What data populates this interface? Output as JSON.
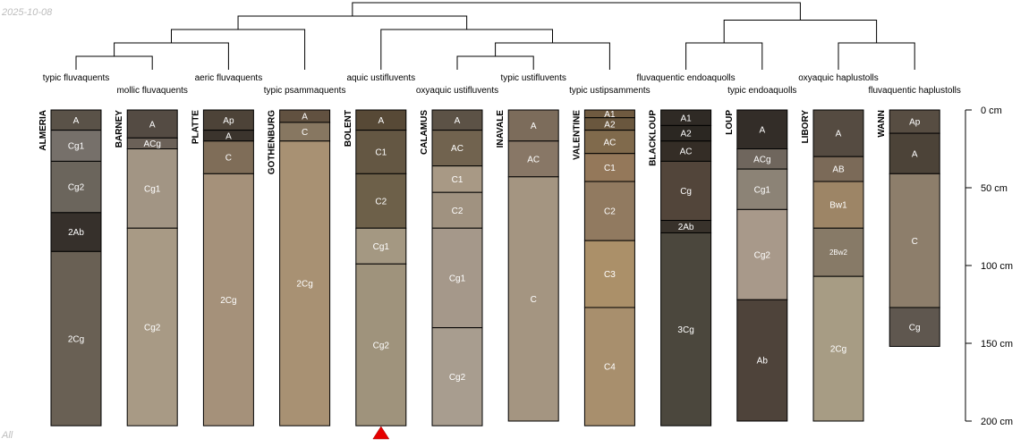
{
  "header": {
    "date": "2025-10-08",
    "footer": "All"
  },
  "chart_data": {
    "type": "soil-profile-sketch",
    "depth_axis": {
      "unit": "cm",
      "ticks": [
        0,
        50,
        100,
        150,
        200
      ],
      "tick_labels": [
        "0 cm",
        "50 cm",
        "100 cm",
        "150 cm",
        "200 cm"
      ],
      "range": [
        0,
        200
      ]
    },
    "marker": {
      "profile": "BOLENT",
      "symbol": "triangle"
    },
    "profiles": [
      {
        "name": "ALMERIA",
        "taxon": "typic fluvaquents",
        "horizons": [
          {
            "name": "A",
            "top": 0,
            "bottom": 13,
            "color": "#5a5248"
          },
          {
            "name": "Cg1",
            "top": 13,
            "bottom": 33,
            "color": "#76706a"
          },
          {
            "name": "Cg2",
            "top": 33,
            "bottom": 66,
            "color": "#6b655c"
          },
          {
            "name": "2Ab",
            "top": 66,
            "bottom": 91,
            "color": "#36302b"
          },
          {
            "name": "2Cg",
            "top": 91,
            "bottom": 203,
            "color": "#696054"
          }
        ]
      },
      {
        "name": "BARNEY",
        "taxon": "mollic fluvaquents",
        "horizons": [
          {
            "name": "A",
            "top": 0,
            "bottom": 18,
            "color": "#544b43"
          },
          {
            "name": "ACg",
            "top": 18,
            "bottom": 25,
            "color": "#6b6158"
          },
          {
            "name": "Cg1",
            "top": 25,
            "bottom": 76,
            "color": "#a29584"
          },
          {
            "name": "Cg2",
            "top": 76,
            "bottom": 203,
            "color": "#a89a85"
          }
        ]
      },
      {
        "name": "PLATTE",
        "taxon": "aeric fluvaquents",
        "horizons": [
          {
            "name": "Ap",
            "top": 0,
            "bottom": 13,
            "color": "#4d4338"
          },
          {
            "name": "A",
            "top": 13,
            "bottom": 20,
            "color": "#3b342d"
          },
          {
            "name": "C",
            "top": 20,
            "bottom": 41,
            "color": "#7f6d58"
          },
          {
            "name": "2Cg",
            "top": 41,
            "bottom": 203,
            "color": "#a5917a"
          }
        ]
      },
      {
        "name": "GOTHENBURG",
        "taxon": "typic psammaquents",
        "horizons": [
          {
            "name": "A",
            "top": 0,
            "bottom": 8,
            "color": "#615140"
          },
          {
            "name": "C",
            "top": 8,
            "bottom": 20,
            "color": "#877761"
          },
          {
            "name": "2Cg",
            "top": 20,
            "bottom": 203,
            "color": "#a89173"
          }
        ]
      },
      {
        "name": "BOLENT",
        "taxon": "aquic ustifluvents",
        "horizons": [
          {
            "name": "A",
            "top": 0,
            "bottom": 13,
            "color": "#574936"
          },
          {
            "name": "C1",
            "top": 13,
            "bottom": 41,
            "color": "#645743"
          },
          {
            "name": "C2",
            "top": 41,
            "bottom": 76,
            "color": "#6d6049"
          },
          {
            "name": "Cg1",
            "top": 76,
            "bottom": 99,
            "color": "#a49882"
          },
          {
            "name": "Cg2",
            "top": 99,
            "bottom": 203,
            "color": "#9f937c"
          }
        ]
      },
      {
        "name": "CALAMUS",
        "taxon": "oxyaquic ustifluvents",
        "horizons": [
          {
            "name": "A",
            "top": 0,
            "bottom": 13,
            "color": "#5c5246"
          },
          {
            "name": "AC",
            "top": 13,
            "bottom": 36,
            "color": "#71634f"
          },
          {
            "name": "C1",
            "top": 36,
            "bottom": 53,
            "color": "#a89985"
          },
          {
            "name": "C2",
            "top": 53,
            "bottom": 76,
            "color": "#a09280"
          },
          {
            "name": "Cg1",
            "top": 76,
            "bottom": 140,
            "color": "#a5988a"
          },
          {
            "name": "Cg2",
            "top": 140,
            "bottom": 203,
            "color": "#a89d8f"
          }
        ]
      },
      {
        "name": "INAVALE",
        "taxon": "typic ustifluvents",
        "horizons": [
          {
            "name": "A",
            "top": 0,
            "bottom": 20,
            "color": "#7c6c5b"
          },
          {
            "name": "AC",
            "top": 20,
            "bottom": 43,
            "color": "#887766"
          },
          {
            "name": "C",
            "top": 43,
            "bottom": 200,
            "color": "#a49581"
          }
        ]
      },
      {
        "name": "VALENTINE",
        "taxon": "typic ustipsamments",
        "horizons": [
          {
            "name": "A1",
            "top": 0,
            "bottom": 5,
            "color": "#6f5a40"
          },
          {
            "name": "A2",
            "top": 5,
            "bottom": 13,
            "color": "#6a573e"
          },
          {
            "name": "AC",
            "top": 13,
            "bottom": 28,
            "color": "#806a4c"
          },
          {
            "name": "C1",
            "top": 28,
            "bottom": 46,
            "color": "#94785a"
          },
          {
            "name": "C2",
            "top": 46,
            "bottom": 84,
            "color": "#917a60"
          },
          {
            "name": "C3",
            "top": 84,
            "bottom": 127,
            "color": "#ab9069"
          },
          {
            "name": "C4",
            "top": 127,
            "bottom": 203,
            "color": "#a88f6d"
          }
        ]
      },
      {
        "name": "BLACKLOUP",
        "taxon": "fluvaquentic endoaquolls",
        "horizons": [
          {
            "name": "A1",
            "top": 0,
            "bottom": 10,
            "color": "#2f2a25"
          },
          {
            "name": "A2",
            "top": 10,
            "bottom": 20,
            "color": "#2b2722"
          },
          {
            "name": "AC",
            "top": 20,
            "bottom": 33,
            "color": "#342d26"
          },
          {
            "name": "Cg",
            "top": 33,
            "bottom": 71,
            "color": "#52453a"
          },
          {
            "name": "2Ab",
            "top": 71,
            "bottom": 79,
            "color": "#38322b"
          },
          {
            "name": "3Cg",
            "top": 79,
            "bottom": 203,
            "color": "#4b473d"
          }
        ]
      },
      {
        "name": "LOUP",
        "taxon": "typic endoaquolls",
        "horizons": [
          {
            "name": "A",
            "top": 0,
            "bottom": 25,
            "color": "#332d28"
          },
          {
            "name": "ACg",
            "top": 25,
            "bottom": 38,
            "color": "#6f665d"
          },
          {
            "name": "Cg1",
            "top": 38,
            "bottom": 64,
            "color": "#8c8376"
          },
          {
            "name": "Cg2",
            "top": 64,
            "bottom": 122,
            "color": "#a8998a"
          },
          {
            "name": "Ab",
            "top": 122,
            "bottom": 200,
            "color": "#4e433a"
          }
        ]
      },
      {
        "name": "LIBORY",
        "taxon": "oxyaquic haplustolls",
        "horizons": [
          {
            "name": "A",
            "top": 0,
            "bottom": 30,
            "color": "#554b41"
          },
          {
            "name": "AB",
            "top": 30,
            "bottom": 46,
            "color": "#7b6a58"
          },
          {
            "name": "Bw1",
            "top": 46,
            "bottom": 76,
            "color": "#9d8566"
          },
          {
            "name": "2Bw2",
            "top": 76,
            "bottom": 107,
            "color": "#877a67"
          },
          {
            "name": "2Cg",
            "top": 107,
            "bottom": 200,
            "color": "#a79c84"
          }
        ]
      },
      {
        "name": "WANN",
        "taxon": "fluvaquentic haplustolls",
        "horizons": [
          {
            "name": "Ap",
            "top": 0,
            "bottom": 15,
            "color": "#574d42"
          },
          {
            "name": "A",
            "top": 15,
            "bottom": 41,
            "color": "#4c4338"
          },
          {
            "name": "C",
            "top": 41,
            "bottom": 127,
            "color": "#8d7e6b"
          },
          {
            "name": "Cg",
            "top": 127,
            "bottom": 152,
            "color": "#5f574f"
          }
        ]
      }
    ],
    "dendrogram": {
      "merges": [
        {
          "id": "m1",
          "left": "p0",
          "right": "p1"
        },
        {
          "id": "m2",
          "left": "m1",
          "right": "p2"
        },
        {
          "id": "m3",
          "left": "m2",
          "right": "p3"
        },
        {
          "id": "m4",
          "left": "p5",
          "right": "p6"
        },
        {
          "id": "m5",
          "left": "m4",
          "right": "p7"
        },
        {
          "id": "m6",
          "left": "p4",
          "right": "m5"
        },
        {
          "id": "m7",
          "left": "m3",
          "right": "m6"
        },
        {
          "id": "m8",
          "left": "p8",
          "right": "p9"
        },
        {
          "id": "m9",
          "left": "p10",
          "right": "p11"
        },
        {
          "id": "m10",
          "left": "m8",
          "right": "m9"
        },
        {
          "id": "m11",
          "left": "m7",
          "right": "m10"
        }
      ],
      "heights": {
        "m1": 1,
        "m2": 2,
        "m3": 3,
        "m4": 1,
        "m5": 2,
        "m6": 3,
        "m7": 4,
        "m8": 2,
        "m9": 2,
        "m10": 3.7,
        "m11": 5
      }
    }
  }
}
